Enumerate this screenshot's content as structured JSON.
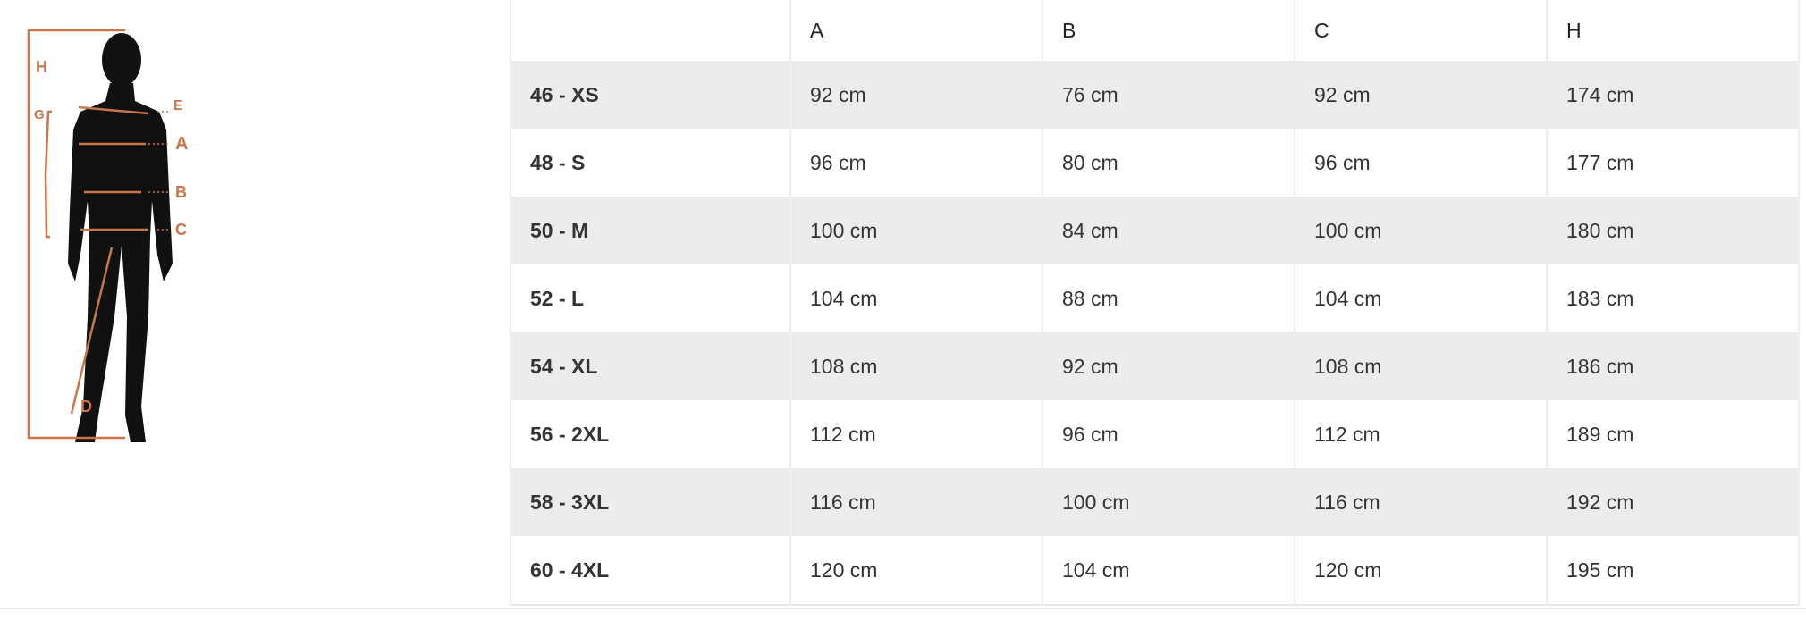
{
  "figure": {
    "labels": [
      "H",
      "G",
      "E",
      "A",
      "B",
      "C",
      "D"
    ],
    "accent_color": "#c8764a"
  },
  "table": {
    "headers": [
      "",
      "A",
      "B",
      "C",
      "H"
    ],
    "rows": [
      {
        "size": "46 - XS",
        "values": [
          "92 cm",
          "76 cm",
          "92 cm",
          "174 cm"
        ]
      },
      {
        "size": "48 - S",
        "values": [
          "96 cm",
          "80 cm",
          "96 cm",
          "177 cm"
        ]
      },
      {
        "size": "50 - M",
        "values": [
          "100 cm",
          "84 cm",
          "100 cm",
          "180 cm"
        ]
      },
      {
        "size": "52 - L",
        "values": [
          "104 cm",
          "88 cm",
          "104 cm",
          "183 cm"
        ]
      },
      {
        "size": "54 - XL",
        "values": [
          "108 cm",
          "92 cm",
          "108 cm",
          "186 cm"
        ]
      },
      {
        "size": "56 - 2XL",
        "values": [
          "112 cm",
          "96 cm",
          "112 cm",
          "189 cm"
        ]
      },
      {
        "size": "58 - 3XL",
        "values": [
          "116 cm",
          "100 cm",
          "116 cm",
          "192 cm"
        ]
      },
      {
        "size": "60 - 4XL",
        "values": [
          "120 cm",
          "104 cm",
          "120 cm",
          "195 cm"
        ]
      }
    ]
  }
}
